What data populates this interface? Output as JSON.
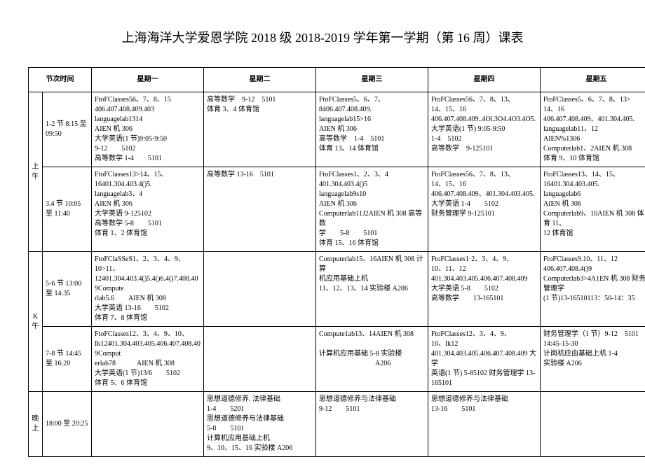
{
  "title": "上海海洋大学爱恩学院 2018 级 2018-2019 学年第一学期（第 16 周）课表",
  "headers": {
    "period_time": "节次时间",
    "mon": "星期一",
    "tue": "星期二",
    "wed": "星期三",
    "thu": "星期四",
    "fri": "星期五"
  },
  "sessions": {
    "morning": "上午",
    "afternoon": "K午",
    "evening": "晚上"
  },
  "rows": [
    {
      "time": "1-2 节 8:15 至 09:50",
      "mon": "FtoFClasses56、7、8、15\n406.407.408.409.403\nlanguagelab1314\nAIEN 机 306\n大学英语(1 节)9:05-9:50\n9-12　　5102\n高等数学 1-4　　5101",
      "tue": "高等数学　9-12　5101\n体育 3、4 体育馆",
      "wed": "FtoFClasses5、6、7、\n8406.407.408.409.\nlanguagelab15>16\nAIEN 机 306\n高等数学　1-4　5101\n体育 13、14 体育馆",
      "thu": "FtoFClasses56、7、8、13、\n14、15、16\n406.407.408.409..4Ol.3O4.4O3.4O5.\n大学英语(1 节) 9:05-9:50\n1-4　5102\n高等数学　9-125101",
      "fri": "FtoFClasses5、6、7、8、13>\n14、16\n406.407.408.409、401.304.405.\nlanguagelab11、12\nAIEN%1306\nComputerlab1、2AIEN 机 308\n体育 9、10 体育馆"
    },
    {
      "time": "3.4 节 10:05 至 11:40",
      "mon": "FtoFClasses13>14、15、\n16401.304.403.4()5.\nlanguagelab3、4\nAIEN 机 306\n大学英语 9-125102\n高等数学 5-8　　5101\n体育 1、2 体育馆",
      "tue": "高等数学 13-16　5101",
      "wed": "FtoFClasses1、2、3、4\n401.304.403.4()5\nlanguagelab9s10\nAIEN 机 306\nComputerlab11J2AIEN 机 308 高等数\n学　　5-8　　5101\n体育 15、16 体育馆",
      "thu": "FtoFClasses56、7、8、13、\n14、15、16\n406.407.408.409、401.304.403.405.\n大学英语 1-4　　5102\n财务管理学 9-125101",
      "fri": "FtoFClasses13、14、15、\n16401.304.403.405.\nlanguagelab6\nAIEN 机 306\nComputerlab9、10AIEN 机 308 体育 11、\n12 体育馆"
    },
    {
      "time": "5-6 节 13:00 至 14:35",
      "mon": "FtoFClaSSeS1、2、3、4、9、10>11、\n12401.304.403.4()5.4()6.4()7.408.409Compute\nrlab5.6　　AIEN 机 308\n大学英语 13-16　　5102\n体育 7、8 体育馆",
      "tue": "",
      "wed": "Computerlab15、16AIEN 机 308 计算\n机应用基础上机\n11、12、13、14 实验楼 A206",
      "thu": "FtoFClasses1·2、3、4、9、\n10、11、12\n401.304.403.405.406.407.408.409\n大学英语 5-8　　5102\n高等数学　　13-165101",
      "fri": "FtoFClasses9.10、11、12\n406.407.408.4()9\nComputerlab3>4A1EN 机 308 财务管理学\n(1 节)13-16510113：50-14：35"
    },
    {
      "time": "7-8 节 14:45 至 16:20",
      "mon": "FtoFClasses12、3、4、9、10、\nIk12401.304.403.405.406.407.408.409Comput\nerlab78　　　AIEN 机 308\n大学英语(1 节)13/6　　5102\n体育 5、6 体育馆",
      "tue": "",
      "wed": "Compute1ab13、14AIEN 机 308\n\n计算机应用基础 5-8 实验楼\n　　　　　　　　A206",
      "thu": "FtoFClasses12、3、4、9、\n10、Ik12\n401.304.403.405.406.407.408.409 大学\n英语(1 节) 5-85102 财务管理学 13-\n165101",
      "fri": "财务管理学（1 节）9-12　5101\n14:45-15-30\n计岗机应由基础上机 1-4\n实验楼 A206"
    },
    {
      "time": "18:00 至 20:25",
      "mon": "",
      "tue": "思想道德修养. 法律基础\n1-4　　5201\n思想道德修养与法律基础\n5-8　　5101\n计算机应用基础上机\n9、10、15、16 实验楼 A206",
      "wed": "思想道德修养与法律基础\n9-12　　5101",
      "thu": "思想道德修养与法律基础\n13-16　　5101",
      "fri": ""
    }
  ]
}
